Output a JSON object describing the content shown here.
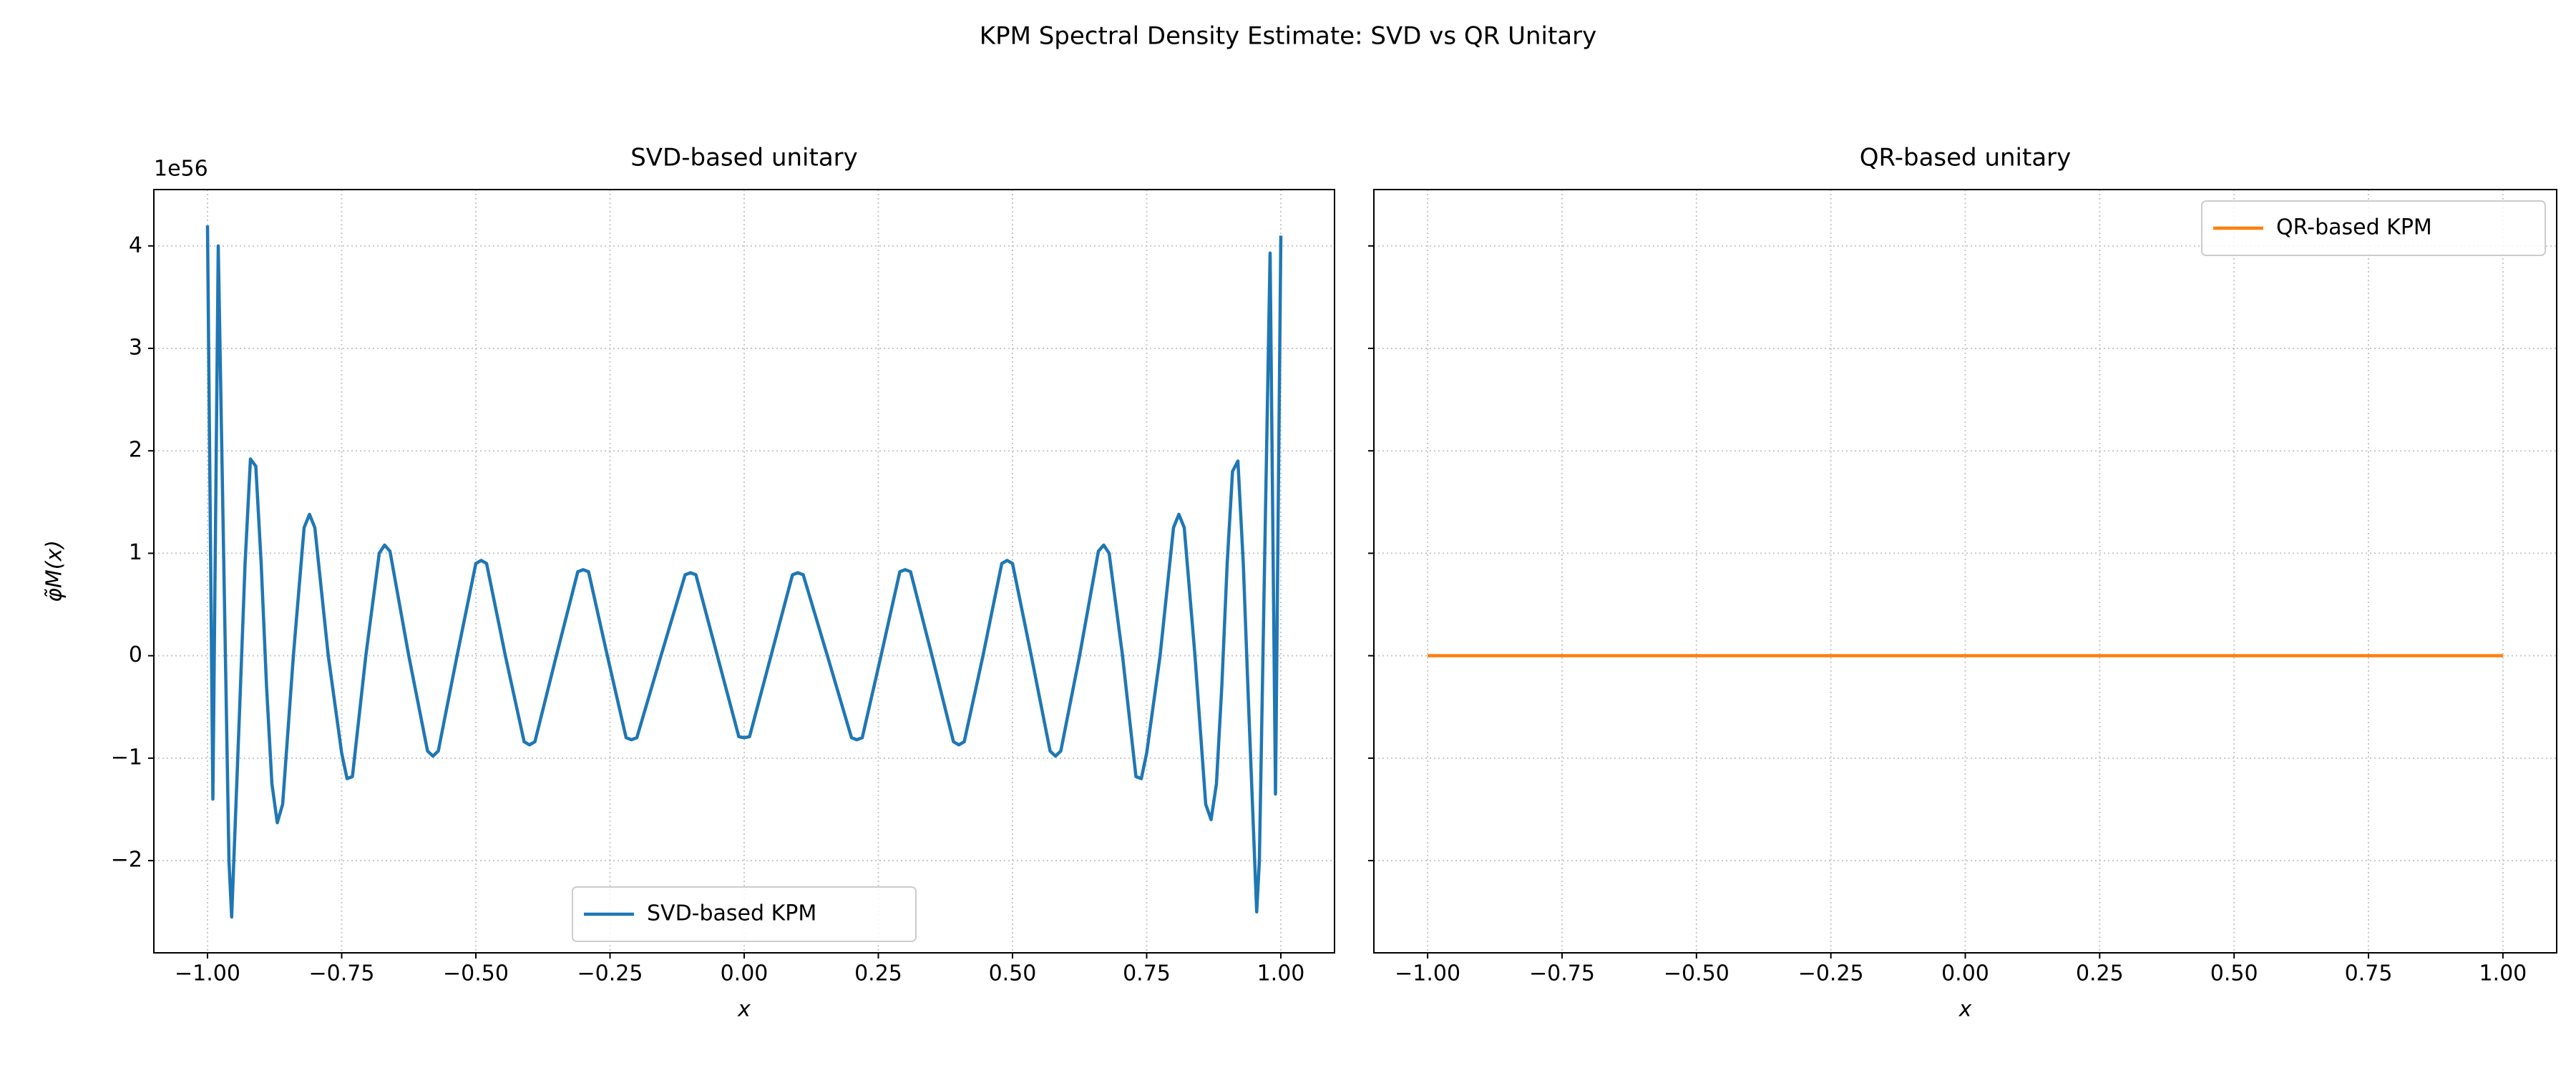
{
  "title": "KPM Spectral Density Estimate: SVD vs QR Unitary",
  "chart_data": [
    {
      "type": "line",
      "title": "SVD-based unitary",
      "xlabel": "x",
      "ylabel": "φ̃M(x)",
      "y_offset_label": "1e56",
      "xlim": [
        -1.1,
        1.1
      ],
      "ylim": [
        -2.9,
        4.55
      ],
      "xticks": [
        {
          "value": -1,
          "label": "−1.00"
        },
        {
          "value": -0.75,
          "label": "−0.75"
        },
        {
          "value": -0.5,
          "label": "−0.50"
        },
        {
          "value": -0.25,
          "label": "−0.25"
        },
        {
          "value": 0,
          "label": "0.00"
        },
        {
          "value": 0.25,
          "label": "0.25"
        },
        {
          "value": 0.5,
          "label": "0.50"
        },
        {
          "value": 0.75,
          "label": "0.75"
        },
        {
          "value": 1,
          "label": "1.00"
        }
      ],
      "yticks": [
        {
          "value": -2,
          "label": "−2"
        },
        {
          "value": -1,
          "label": "−1"
        },
        0,
        1,
        2,
        3,
        4
      ],
      "ytick_labels": true,
      "grid": true,
      "legend": "lower center",
      "x": [
        -1.0,
        -0.99,
        -0.98,
        -0.97,
        -0.96,
        -0.955,
        -0.94,
        -0.93,
        -0.92,
        -0.91,
        -0.9,
        -0.89,
        -0.88,
        -0.87,
        -0.86,
        -0.84,
        -0.82,
        -0.81,
        -0.8,
        -0.775,
        -0.75,
        -0.74,
        -0.73,
        -0.705,
        -0.68,
        -0.67,
        -0.66,
        -0.625,
        -0.59,
        -0.58,
        -0.57,
        -0.535,
        -0.5,
        -0.49,
        -0.48,
        -0.445,
        -0.41,
        -0.4,
        -0.39,
        -0.35,
        -0.31,
        -0.3,
        -0.29,
        -0.255,
        -0.22,
        -0.21,
        -0.2,
        -0.155,
        -0.11,
        -0.1,
        -0.09,
        -0.05,
        -0.01,
        0,
        0.01,
        0.05,
        0.09,
        0.1,
        0.11,
        0.155,
        0.2,
        0.21,
        0.22,
        0.255,
        0.29,
        0.3,
        0.31,
        0.35,
        0.39,
        0.4,
        0.41,
        0.445,
        0.48,
        0.49,
        0.5,
        0.535,
        0.57,
        0.58,
        0.59,
        0.625,
        0.66,
        0.67,
        0.68,
        0.705,
        0.73,
        0.74,
        0.75,
        0.775,
        0.8,
        0.81,
        0.82,
        0.84,
        0.86,
        0.87,
        0.88,
        0.89,
        0.9,
        0.91,
        0.92,
        0.93,
        0.94,
        0.955,
        0.96,
        0.97,
        0.98,
        0.99,
        1.0
      ],
      "series": [
        {
          "name": "SVD-based KPM",
          "color": "#1f77b4",
          "values": [
            4.2,
            -1.4,
            4.0,
            1.0,
            -2.0,
            -2.55,
            -0.5,
            0.9,
            1.92,
            1.85,
            0.9,
            -0.3,
            -1.25,
            -1.63,
            -1.45,
            0,
            1.25,
            1.38,
            1.25,
            0,
            -0.95,
            -1.2,
            -1.18,
            0,
            1.0,
            1.08,
            1.02,
            0,
            -0.93,
            -0.98,
            -0.93,
            0,
            0.9,
            0.93,
            0.9,
            0,
            -0.84,
            -0.87,
            -0.84,
            0,
            0.82,
            0.84,
            0.82,
            0,
            -0.8,
            -0.82,
            -0.8,
            0,
            0.79,
            0.81,
            0.79,
            0,
            -0.79,
            -0.8,
            -0.79,
            0,
            0.79,
            0.81,
            0.79,
            0,
            -0.8,
            -0.82,
            -0.8,
            0,
            0.82,
            0.84,
            0.82,
            0,
            -0.84,
            -0.87,
            -0.84,
            0,
            0.9,
            0.93,
            0.9,
            0,
            -0.93,
            -0.98,
            -0.93,
            0,
            1.02,
            1.08,
            1.0,
            0,
            -1.18,
            -1.2,
            -0.95,
            0,
            1.25,
            1.38,
            1.25,
            0,
            -1.45,
            -1.6,
            -1.25,
            -0.3,
            0.9,
            1.8,
            1.9,
            0.9,
            -0.5,
            -2.5,
            -2.0,
            1.0,
            3.93,
            -1.35,
            4.1
          ]
        }
      ]
    },
    {
      "type": "line",
      "title": "QR-based unitary",
      "xlabel": "x",
      "xlim": [
        -1.1,
        1.1
      ],
      "ylim": [
        -2.9,
        4.55
      ],
      "xticks": [
        {
          "value": -1,
          "label": "−1.00"
        },
        {
          "value": -0.75,
          "label": "−0.75"
        },
        {
          "value": -0.5,
          "label": "−0.50"
        },
        {
          "value": -0.25,
          "label": "−0.25"
        },
        {
          "value": 0,
          "label": "0.00"
        },
        {
          "value": 0.25,
          "label": "0.25"
        },
        {
          "value": 0.5,
          "label": "0.50"
        },
        {
          "value": 0.75,
          "label": "0.75"
        },
        {
          "value": 1,
          "label": "1.00"
        }
      ],
      "yticks": [
        {
          "value": -2,
          "label": "−2"
        },
        {
          "value": -1,
          "label": "−1"
        },
        0,
        1,
        2,
        3,
        4
      ],
      "ytick_labels": false,
      "grid": true,
      "legend": "upper right",
      "x": [
        -1.0,
        1.0
      ],
      "series": [
        {
          "name": "QR-based KPM",
          "color": "#ff7f0e",
          "values": [
            0,
            0
          ]
        }
      ]
    }
  ]
}
